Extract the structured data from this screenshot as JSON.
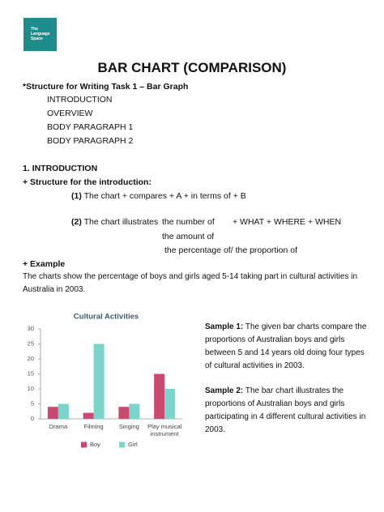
{
  "logo": {
    "lines": [
      "The",
      "Language",
      "Space"
    ]
  },
  "title": "BAR CHART (COMPARISON)",
  "structure": {
    "heading": "*Structure for Writing Task 1 – Bar Graph",
    "items": [
      "INTRODUCTION",
      "OVERVIEW",
      "BODY PARAGRAPH 1",
      "BODY PARAGRAPH 2"
    ]
  },
  "introduction": {
    "heading": "1. INTRODUCTION",
    "subheading": "+ Structure for the introduction:",
    "formula_1": {
      "number": "(1)",
      "text": "The chart + compares + A + in terms of + B"
    },
    "formula_2": {
      "number": "(2)",
      "text": "The chart illustrates",
      "options": [
        "the number of",
        "the amount of",
        "the percentage of/ the proportion of"
      ],
      "suffix": "+ WHAT + WHERE + WHEN"
    }
  },
  "example": {
    "heading": "+ Example",
    "lines": [
      "The charts show the percentage of boys and girls aged 5-14 taking part in cultural activities in",
      "Australia in 2003."
    ]
  },
  "chart_data": {
    "type": "bar",
    "title": "Cultural Activities",
    "categories": [
      "Drama",
      "Filming",
      "Singing",
      "Play musical instrument"
    ],
    "series": [
      {
        "name": "Boy",
        "color": "#c9496f",
        "values": [
          4,
          2,
          4,
          15
        ]
      },
      {
        "name": "Girl",
        "color": "#79d4cb",
        "values": [
          5,
          25,
          5,
          10
        ]
      }
    ],
    "ylim": [
      0,
      30
    ],
    "yticks": [
      0,
      5,
      10,
      15,
      20,
      25,
      30
    ],
    "legend": "bottom"
  },
  "samples": [
    {
      "label": "Sample 1:",
      "lines": [
        "The given bar charts compare the",
        "proportions of Australian boys and girls",
        "between 5 and 14 years old doing four types",
        "of cultural activities in 2003."
      ]
    },
    {
      "label": "Sample 2:",
      "lines": [
        "The bar chart illustrates the",
        "proportions of Australian boys and girls",
        "participating in 4 different cultural activities in",
        "2003."
      ]
    }
  ]
}
